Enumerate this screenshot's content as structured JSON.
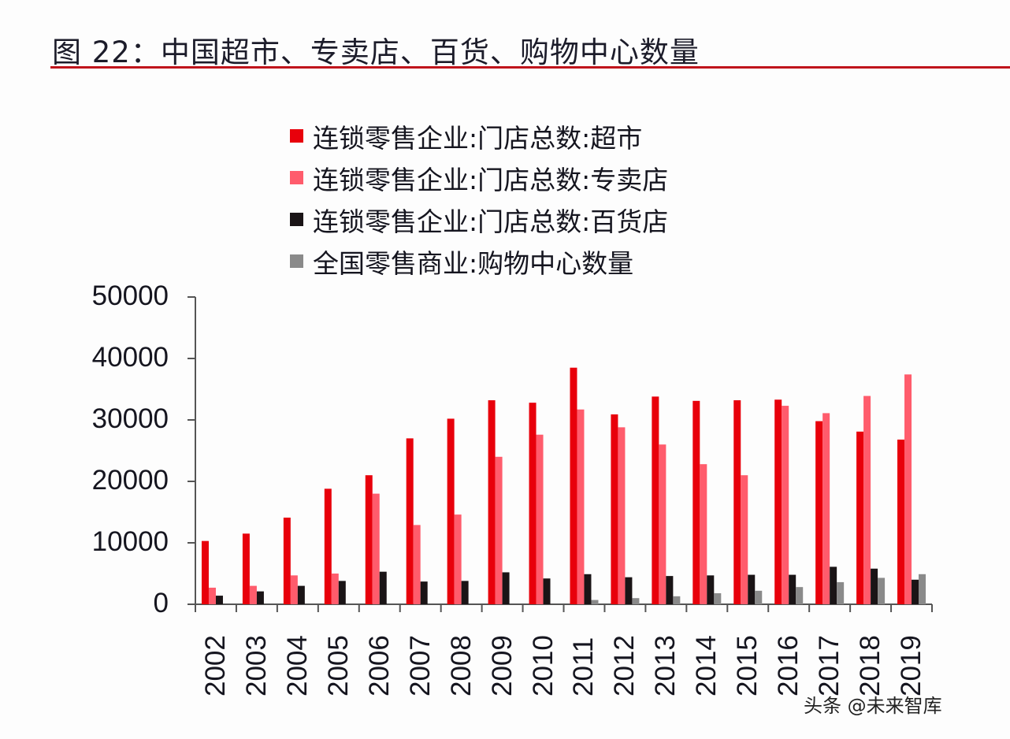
{
  "figure": {
    "title": "图 22：中国超市、专卖店、百货、购物中心数量",
    "watermark": "头条 @未来智库"
  },
  "colors": {
    "supermarket": "#e8000b",
    "specialty": "#ff5c6c",
    "department": "#1a1416",
    "mall": "#8a8a8a",
    "axis": "#555555",
    "title_rule": "#c0141c"
  },
  "legend": [
    {
      "label": "连锁零售企业:门店总数:超市",
      "color": "#e8000b"
    },
    {
      "label": "连锁零售企业:门店总数:专卖店",
      "color": "#ff5c6c"
    },
    {
      "label": "连锁零售企业:门店总数:百货店",
      "color": "#1a1416"
    },
    {
      "label": "全国零售商业:购物中心数量",
      "color": "#8a8a8a"
    }
  ],
  "chart_data": {
    "type": "bar",
    "title": "图 22：中国超市、专卖店、百货、购物中心数量",
    "xlabel": "",
    "ylabel": "",
    "ylim": [
      0,
      50000
    ],
    "yticks": [
      0,
      10000,
      20000,
      30000,
      40000,
      50000
    ],
    "grid": false,
    "legend_position": "top",
    "categories": [
      "2002",
      "2003",
      "2004",
      "2005",
      "2006",
      "2007",
      "2008",
      "2009",
      "2010",
      "2011",
      "2012",
      "2013",
      "2014",
      "2015",
      "2016",
      "2017",
      "2018",
      "2019"
    ],
    "series": [
      {
        "name": "连锁零售企业:门店总数:超市",
        "color": "#e8000b",
        "values": [
          10300,
          11500,
          14100,
          18800,
          21000,
          27000,
          30200,
          33200,
          32800,
          38500,
          30900,
          33800,
          33100,
          33200,
          33300,
          29800,
          28100,
          26800
        ]
      },
      {
        "name": "连锁零售企业:门店总数:专卖店",
        "color": "#ff5c6c",
        "values": [
          2700,
          3000,
          4700,
          5000,
          18000,
          12900,
          14600,
          24000,
          27600,
          31700,
          28800,
          26000,
          22800,
          21000,
          32300,
          31100,
          33900,
          37400
        ]
      },
      {
        "name": "连锁零售企业:门店总数:百货店",
        "color": "#1a1416",
        "values": [
          1400,
          2100,
          3000,
          3800,
          5300,
          3700,
          3800,
          5200,
          4200,
          4900,
          4400,
          4600,
          4700,
          4800,
          4800,
          6100,
          5800,
          4000
        ]
      },
      {
        "name": "全国零售商业:购物中心数量",
        "color": "#8a8a8a",
        "values": [
          null,
          null,
          null,
          null,
          null,
          null,
          null,
          null,
          null,
          700,
          1000,
          1300,
          1800,
          2200,
          2800,
          3600,
          4300,
          4900
        ]
      }
    ]
  }
}
